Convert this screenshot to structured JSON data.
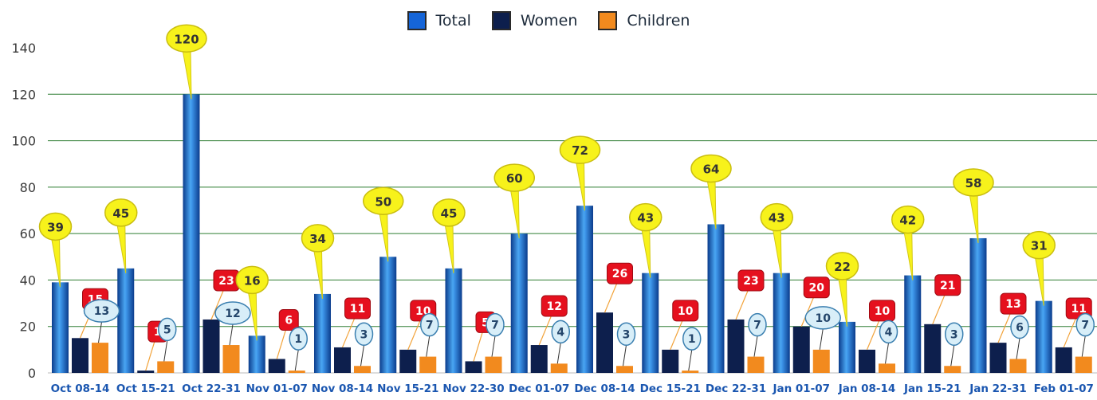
{
  "chart_data": {
    "type": "bar",
    "title": "",
    "xlabel": "",
    "ylabel": "",
    "ylim": [
      0,
      140
    ],
    "yticks": [
      0,
      20,
      40,
      60,
      80,
      100,
      120,
      140
    ],
    "grid": true,
    "legend_position": "top-center",
    "categories": [
      "Oct 08-14",
      "Oct 15-21",
      "Oct 22-31",
      "Nov 01-07",
      "Nov 08-14",
      "Nov 15-21",
      "Nov 22-30",
      "Dec 01-07",
      "Dec 08-14",
      "Dec 15-21",
      "Dec 22-31",
      "Jan 01-07",
      "Jan 08-14",
      "Jan 15-21",
      "Jan 22-31",
      "Feb 01-07"
    ],
    "series": [
      {
        "name": "Total",
        "color": "#1565d8",
        "values": [
          39,
          45,
          120,
          16,
          34,
          50,
          45,
          60,
          72,
          43,
          64,
          43,
          22,
          42,
          58,
          31
        ]
      },
      {
        "name": "Women",
        "color": "#0d1f4d",
        "values": [
          15,
          1,
          23,
          6,
          11,
          10,
          5,
          12,
          26,
          10,
          23,
          20,
          10,
          21,
          13,
          11
        ]
      },
      {
        "name": "Children",
        "color": "#f28a1e",
        "values": [
          13,
          5,
          12,
          1,
          3,
          7,
          7,
          4,
          3,
          1,
          7,
          10,
          4,
          3,
          6,
          7
        ]
      }
    ]
  },
  "legend": {
    "total": "Total",
    "women": "Women",
    "children": "Children"
  },
  "colors": {
    "total_label_fill": "#f7f21b",
    "women_label_fill": "#e5101e",
    "children_label_fill": "#d8eef8",
    "grid": "#2e7d32"
  }
}
